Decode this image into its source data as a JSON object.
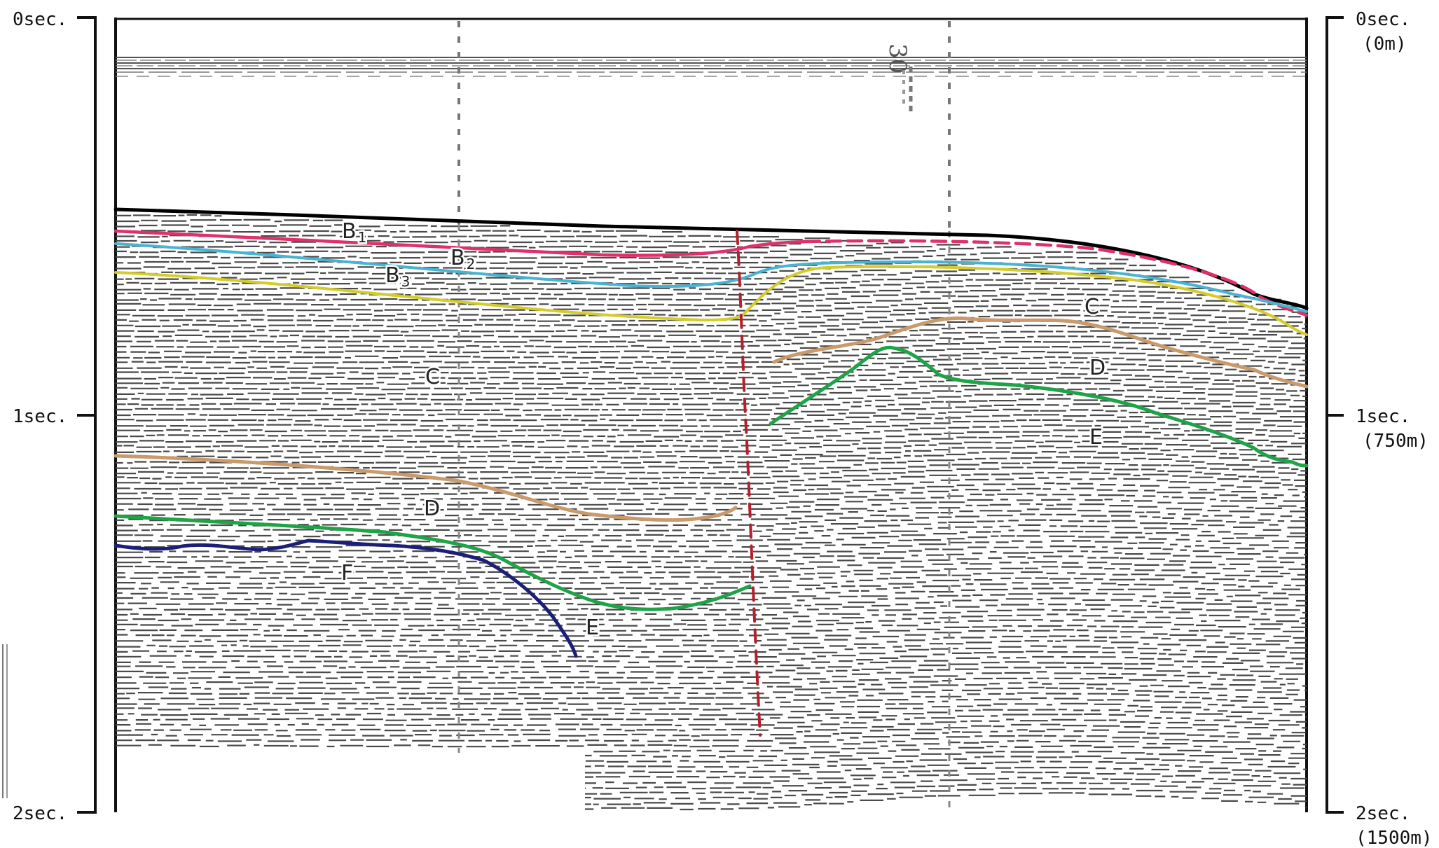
{
  "left_axis": {
    "ticks": [
      {
        "label": "0sec."
      },
      {
        "label": "1sec."
      },
      {
        "label": "2sec."
      }
    ]
  },
  "right_axis": {
    "ticks": [
      {
        "label": "0sec.",
        "depth": "(0m)"
      },
      {
        "label": "1sec.",
        "depth": "(750m)"
      },
      {
        "label": "2sec.",
        "depth": "(1500m)"
      }
    ]
  },
  "fix_mark": "30",
  "horizons": {
    "seafloor": {
      "color": "#000000"
    },
    "B1": {
      "label": "B",
      "sub": "1",
      "color": "#e0306a"
    },
    "B2": {
      "label": "B",
      "sub": "2",
      "color": "#49b3d2"
    },
    "B3": {
      "label": "B",
      "sub": "3",
      "color": "#d4cc2a"
    },
    "C": {
      "label": "C",
      "color": "#c99a6c"
    },
    "D": {
      "label": "D",
      "color": "#c99a6c"
    },
    "E": {
      "label": "E",
      "color": "#1ea346"
    },
    "F": {
      "label": "F",
      "color": "#1c1f78"
    },
    "fault": {
      "color": "#b3202c"
    }
  }
}
